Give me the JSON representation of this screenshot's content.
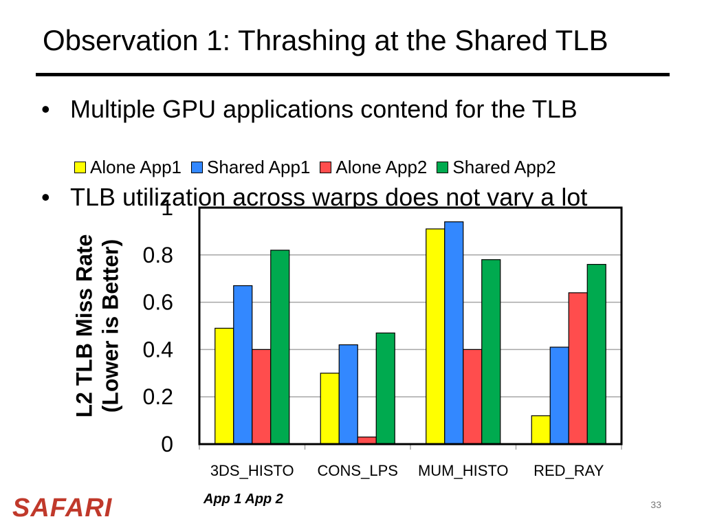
{
  "slide": {
    "title": "Observation 1: Thrashing at the Shared TLB",
    "bullets": [
      "Multiple GPU applications contend for the TLB",
      "TLB utilization across warps does not vary a lot"
    ],
    "bullet_symbol": "•",
    "note": "App 1  App 2",
    "logo": "SAFARI",
    "page_number": "33"
  },
  "chart_data": {
    "type": "bar",
    "categories": [
      "3DS_HISTO",
      "CONS_LPS",
      "MUM_HISTO",
      "RED_RAY"
    ],
    "series": [
      {
        "name": "Alone App1",
        "color": "#ffff00",
        "values": [
          0.49,
          0.3,
          0.91,
          0.12
        ]
      },
      {
        "name": "Shared App1",
        "color": "#3388ff",
        "values": [
          0.67,
          0.42,
          0.94,
          0.41
        ]
      },
      {
        "name": "Alone App2",
        "color": "#ff4d4d",
        "values": [
          0.4,
          0.03,
          0.4,
          0.64
        ]
      },
      {
        "name": "Shared App2",
        "color": "#00aa4f",
        "values": [
          0.82,
          0.47,
          0.78,
          0.76
        ]
      }
    ],
    "ylabel_line1": "L2 TLB Miss Rate",
    "ylabel_line2": "(Lower is Better)",
    "ylim": [
      0,
      1
    ],
    "yticks": [
      "0",
      "0.2",
      "0.4",
      "0.6",
      "0.8",
      "1"
    ],
    "grid": true,
    "legend_position": "top"
  }
}
